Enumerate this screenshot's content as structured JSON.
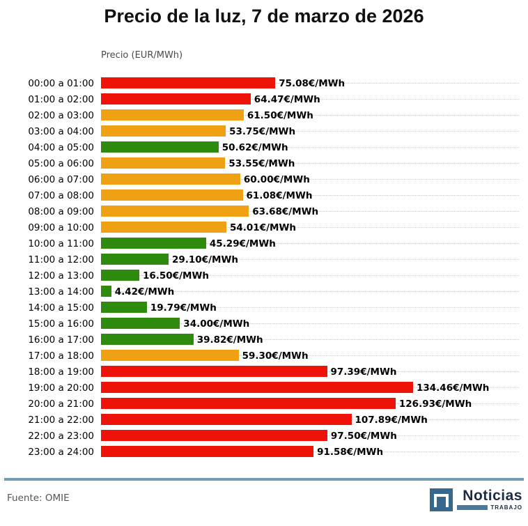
{
  "title": "Precio de la luz, 7 de marzo de 2026",
  "axis_label": "Precio (EUR/MWh)",
  "chart_data": {
    "type": "bar",
    "orientation": "horizontal",
    "title": "Precio de la luz, 7 de marzo de 2026",
    "xlabel": "Precio (EUR/MWh)",
    "xlim": [
      0,
      140
    ],
    "grid": "horizontal dotted line per category row",
    "legend": "none",
    "categories": [
      "00:00 a 01:00",
      "01:00 a 02:00",
      "02:00 a 03:00",
      "03:00 a 04:00",
      "04:00 a 05:00",
      "05:00 a 06:00",
      "06:00 a 07:00",
      "07:00 a 08:00",
      "08:00 a 09:00",
      "09:00 a 10:00",
      "10:00 a 11:00",
      "11:00 a 12:00",
      "12:00 a 13:00",
      "13:00 a 14:00",
      "14:00 a 15:00",
      "15:00 a 16:00",
      "16:00 a 17:00",
      "17:00 a 18:00",
      "18:00 a 19:00",
      "19:00 a 20:00",
      "20:00 a 21:00",
      "21:00 a 22:00",
      "22:00 a 23:00",
      "23:00 a 24:00"
    ],
    "values": [
      75.08,
      64.47,
      61.5,
      53.75,
      50.62,
      53.55,
      60.0,
      61.08,
      63.68,
      54.01,
      45.29,
      29.1,
      16.5,
      4.42,
      19.79,
      34.0,
      39.82,
      59.3,
      97.39,
      134.46,
      126.93,
      107.89,
      97.5,
      91.58
    ],
    "value_labels": [
      "75.08€/MWh",
      "64.47€/MWh",
      "61.50€/MWh",
      "53.75€/MWh",
      "50.62€/MWh",
      "53.55€/MWh",
      "60.00€/MWh",
      "61.08€/MWh",
      "63.68€/MWh",
      "54.01€/MWh",
      "45.29€/MWh",
      "29.10€/MWh",
      "16.50€/MWh",
      "4.42€/MWh",
      "19.79€/MWh",
      "34.00€/MWh",
      "39.82€/MWh",
      "59.30€/MWh",
      "97.39€/MWh",
      "134.46€/MWh",
      "126.93€/MWh",
      "107.89€/MWh",
      "97.50€/MWh",
      "91.58€/MWh"
    ],
    "levels": [
      "red",
      "red",
      "orange",
      "orange",
      "green",
      "orange",
      "orange",
      "orange",
      "orange",
      "orange",
      "green",
      "green",
      "green",
      "green",
      "green",
      "green",
      "green",
      "orange",
      "red",
      "red",
      "red",
      "red",
      "red",
      "red"
    ],
    "colors": {
      "red": "#ee1309",
      "orange": "#f0a113",
      "green": "#2e8b0d"
    }
  },
  "footer": {
    "source": "Fuente: OMIE",
    "brand_name": "Noticias",
    "brand_subname": "TRABAJO"
  },
  "theme": {
    "separator_color": "#6d9fb5",
    "logo_blue": "#35688c",
    "logo_bar_blue": "#49799c",
    "navy": "#1b2b45",
    "grid_color": "#c9c9c9"
  }
}
